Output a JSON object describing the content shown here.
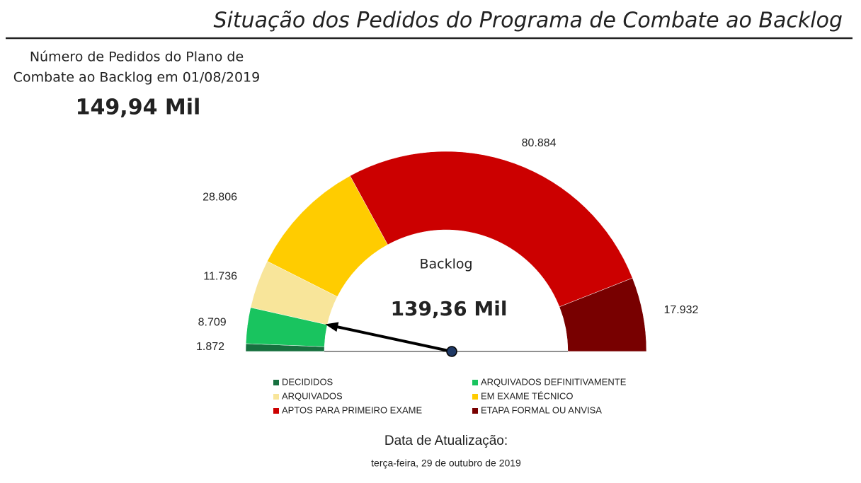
{
  "header": {
    "title": "Situação dos Pedidos do Programa de Combate ao Backlog"
  },
  "kpi": {
    "label_line1": "Número de Pedidos do Plano de",
    "label_line2": "Combate ao Backlog em 01/08/2019",
    "value": "149,94 Mil"
  },
  "chart_data": {
    "type": "gauge",
    "center_label": "Backlog",
    "center_value": "139,36 Mil",
    "categories": [
      "DECIDIDOS",
      "ARQUIVADOS DEFINITIVAMENTE",
      "ARQUIVADOS",
      "EM EXAME TÉCNICO",
      "APTOS PARA PRIMEIRO EXAME",
      "ETAPA FORMAL OU ANVISA"
    ],
    "values": [
      1872,
      8709,
      11736,
      28806,
      80884,
      17932
    ],
    "value_labels": [
      "1.872",
      "8.709",
      "11.736",
      "28.806",
      "80.884",
      "17.932"
    ],
    "colors": [
      "#17703f",
      "#19c45f",
      "#f8e59a",
      "#ffcc00",
      "#cc0000",
      "#780000"
    ]
  },
  "footer": {
    "label": "Data de Atualização:",
    "date": "terça-feira, 29 de outubro de 2019"
  }
}
